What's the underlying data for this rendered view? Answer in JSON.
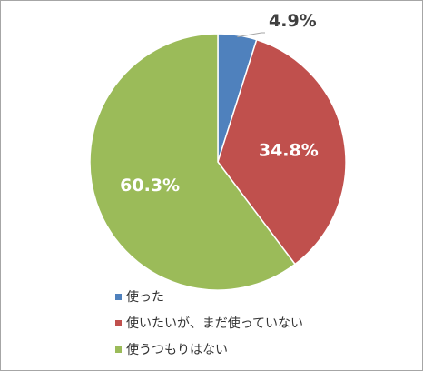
{
  "chart_data": {
    "type": "pie",
    "title": "",
    "categories": [
      "使った",
      "使いたいが、まだ使っていない",
      "使うつもりはない"
    ],
    "values": [
      4.9,
      34.8,
      60.3
    ],
    "value_labels": [
      "4.9%",
      "34.8%",
      "60.3%"
    ],
    "colors": [
      "#4f81bd",
      "#c0504d",
      "#9bbb59"
    ],
    "label_colors": [
      "#404040",
      "#ffffff",
      "#ffffff"
    ],
    "start_angle_deg": 0,
    "direction": "clockwise",
    "legend_position": "bottom-left"
  },
  "legend": {
    "items": [
      {
        "label": "使った",
        "color": "#4f81bd"
      },
      {
        "label": "使いたいが、まだ使っていない",
        "color": "#c0504d"
      },
      {
        "label": "使うつもりはない",
        "color": "#9bbb59"
      }
    ]
  }
}
